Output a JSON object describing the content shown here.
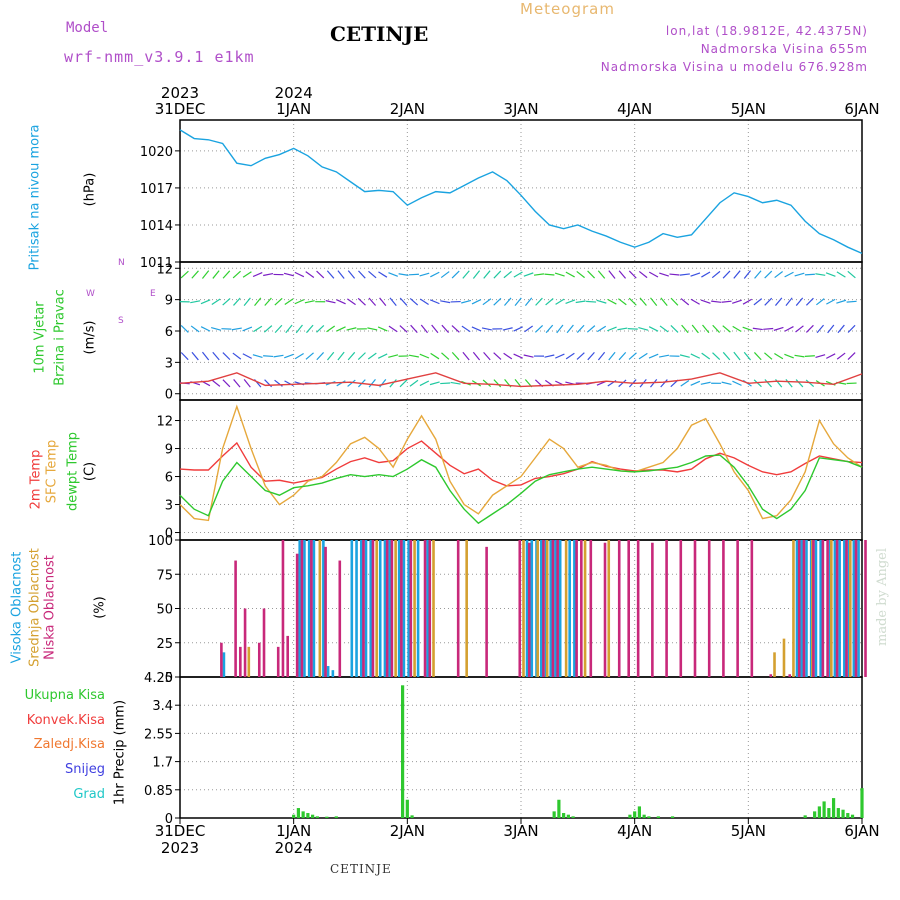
{
  "header": {
    "model_label": "Model",
    "model_name": "wrf-nmm_v3.9.1  e1km",
    "station": "CETINJE",
    "meteogram_label": "Meteogram",
    "lonlat": "lon,lat (18.9812E, 42.4375N)",
    "elevation": "Nadmorska Visina 655m",
    "model_elevation": "Nadmorska Visina u modelu 676.928m"
  },
  "footer_station": "CETINJE",
  "watermark": "made by Angel",
  "time_axis": {
    "top_years": [
      "2023",
      "2024"
    ],
    "bottom_years": [
      "2023",
      "2024"
    ],
    "day_labels": [
      "31DEC",
      "1JAN",
      "2JAN",
      "3JAN",
      "4JAN",
      "5JAN",
      "6JAN"
    ]
  },
  "panel_labels": {
    "pressure": [
      "Pritisak na nivou mora",
      "(hPa)"
    ],
    "wind": [
      "10m Vjetar",
      "Brzina i Pravac",
      "(m/s)"
    ],
    "wind_compass": [
      "N",
      "W",
      "E",
      "S"
    ],
    "temp": [
      "2m Temp",
      "SFC Temp",
      "dewpt Temp",
      "(C)"
    ],
    "cloud": [
      "Visoka Oblacnost",
      "Srednja Oblacnost",
      "Niska Oblacnost",
      "(%)"
    ],
    "precip": [
      "1hr Precip (mm)"
    ],
    "precip_legend": [
      "Ukupna Kisa",
      "Konvek.Kisa",
      "Zaledj.Kisa",
      "Snijeg",
      "Grad"
    ]
  },
  "colors": {
    "pressure": "#1aa3e0",
    "temp2m": "#f03c3c",
    "sfc": "#e6a83c",
    "dewpt": "#2ec82e",
    "high_cloud": "#1aa3e0",
    "mid_cloud": "#d4a030",
    "low_cloud": "#c8287a",
    "rain": "#2ec82e",
    "conv": "#f03c3c",
    "frz": "#f07830",
    "snow": "#4040e0",
    "hail": "#20c8c8",
    "purple_text": "#b04fc9"
  },
  "chart_data": [
    {
      "type": "line",
      "name": "pressure",
      "ylim": [
        1011,
        1022.5
      ],
      "yticks": [
        1011,
        1014,
        1017,
        1020
      ],
      "x_hours": [
        0,
        3,
        6,
        9,
        12,
        15,
        18,
        21,
        24,
        27,
        30,
        33,
        36,
        39,
        42,
        45,
        48,
        51,
        54,
        57,
        60,
        63,
        66,
        69,
        72,
        75,
        78,
        81,
        84,
        87,
        90,
        93,
        96,
        99,
        102,
        105,
        108,
        111,
        114,
        117,
        120,
        123,
        126,
        129,
        132,
        135,
        138,
        141,
        144
      ],
      "values": [
        1021.7,
        1021.0,
        1020.9,
        1020.6,
        1019.0,
        1018.8,
        1019.4,
        1019.7,
        1020.2,
        1019.6,
        1018.7,
        1018.3,
        1017.5,
        1016.7,
        1016.8,
        1016.7,
        1015.6,
        1016.2,
        1016.7,
        1016.6,
        1017.2,
        1017.8,
        1018.3,
        1017.6,
        1016.4,
        1015.1,
        1014.0,
        1013.7,
        1014.0,
        1013.5,
        1013.1,
        1012.6,
        1012.2,
        1012.6,
        1013.3,
        1013.0,
        1013.2,
        1014.5,
        1015.8,
        1016.6,
        1016.3,
        1015.8,
        1016.0,
        1015.6,
        1014.3,
        1013.3,
        1012.8,
        1012.2,
        1011.7
      ]
    },
    {
      "type": "line",
      "name": "wind",
      "ylim": [
        -0.6,
        12.6
      ],
      "yticks": [
        0,
        3,
        6,
        9,
        12
      ],
      "x_hours": [
        0,
        6,
        12,
        18,
        24,
        30,
        36,
        42,
        48,
        54,
        60,
        66,
        72,
        78,
        84,
        90,
        96,
        102,
        108,
        114,
        120,
        126,
        132,
        138,
        144
      ],
      "values": [
        1.0,
        1.2,
        2.0,
        0.8,
        0.9,
        1.0,
        1.1,
        0.8,
        1.4,
        2.0,
        1.0,
        0.9,
        0.7,
        0.8,
        0.9,
        1.2,
        1.0,
        1.1,
        1.4,
        2.0,
        1.0,
        1.2,
        1.1,
        0.9,
        1.9
      ]
    },
    {
      "type": "line",
      "name": "temperature",
      "ylim": [
        -0.8,
        14.2
      ],
      "yticks": [
        0,
        3,
        6,
        9,
        12
      ],
      "x_hours": [
        0,
        3,
        6,
        9,
        12,
        15,
        18,
        21,
        24,
        27,
        30,
        33,
        36,
        39,
        42,
        45,
        48,
        51,
        54,
        57,
        60,
        63,
        66,
        69,
        72,
        75,
        78,
        81,
        84,
        87,
        90,
        93,
        96,
        99,
        102,
        105,
        108,
        111,
        114,
        117,
        120,
        123,
        126,
        129,
        132,
        135,
        138,
        141,
        144
      ],
      "series": [
        {
          "name": "2m Temp",
          "values": [
            6.8,
            6.7,
            6.7,
            8.2,
            9.6,
            7.0,
            5.5,
            5.6,
            5.3,
            5.6,
            5.9,
            6.8,
            7.6,
            8.0,
            7.5,
            7.7,
            9.0,
            9.8,
            8.5,
            7.2,
            6.3,
            6.8,
            5.6,
            5.0,
            5.1,
            5.8,
            6.0,
            6.3,
            6.8,
            7.6,
            7.1,
            6.8,
            6.6,
            6.7,
            6.7,
            6.5,
            6.8,
            7.9,
            8.5,
            8.0,
            7.2,
            6.5,
            6.2,
            6.5,
            7.4,
            8.2,
            7.9,
            7.6,
            7.5
          ]
        },
        {
          "name": "SFC Temp",
          "values": [
            3.0,
            1.5,
            1.3,
            9.0,
            13.5,
            9.0,
            5.0,
            3.0,
            4.0,
            5.5,
            6.0,
            7.5,
            9.5,
            10.2,
            9.0,
            7.0,
            10.0,
            12.5,
            10.0,
            5.5,
            3.0,
            2.0,
            4.0,
            5.0,
            6.0,
            8.0,
            10.0,
            9.0,
            7.0,
            7.5,
            7.2,
            6.6,
            6.5,
            7.0,
            7.5,
            9.0,
            11.5,
            12.2,
            9.5,
            6.5,
            4.5,
            1.5,
            1.8,
            3.5,
            6.5,
            12.0,
            9.5,
            8.0,
            7.0
          ]
        },
        {
          "name": "dewpt Temp",
          "values": [
            4.0,
            2.5,
            1.8,
            5.5,
            7.5,
            6.0,
            4.5,
            4.0,
            4.8,
            5.0,
            5.3,
            5.8,
            6.2,
            6.0,
            6.2,
            6.0,
            6.8,
            7.8,
            7.0,
            4.5,
            2.5,
            1.0,
            2.0,
            3.0,
            4.2,
            5.5,
            6.2,
            6.5,
            6.8,
            7.0,
            6.8,
            6.6,
            6.5,
            6.6,
            6.8,
            7.0,
            7.5,
            8.2,
            8.3,
            7.0,
            5.0,
            2.5,
            1.5,
            2.5,
            4.5,
            8.0,
            7.8,
            7.6,
            7.0
          ]
        }
      ]
    },
    {
      "type": "bar",
      "name": "cloud cover",
      "ylim": [
        0,
        100
      ],
      "yticks": [
        0,
        25,
        50,
        75,
        100
      ],
      "low": [
        [
          8,
          25
        ],
        [
          11,
          85
        ],
        [
          12,
          22
        ],
        [
          13,
          50
        ],
        [
          16,
          25
        ],
        [
          17,
          50
        ],
        [
          20,
          22
        ],
        [
          21,
          100
        ],
        [
          22,
          30
        ],
        [
          24,
          90
        ],
        [
          25,
          100
        ],
        [
          27,
          100
        ],
        [
          30,
          95
        ],
        [
          33,
          85
        ],
        [
          38,
          100
        ],
        [
          40,
          100
        ],
        [
          43,
          100
        ],
        [
          44,
          100
        ],
        [
          46,
          100
        ],
        [
          48,
          100
        ],
        [
          51,
          100
        ],
        [
          52,
          100
        ],
        [
          58,
          100
        ],
        [
          64,
          95
        ],
        [
          71,
          100
        ],
        [
          73,
          98
        ],
        [
          76,
          100
        ],
        [
          78,
          100
        ],
        [
          79,
          100
        ],
        [
          83,
          100
        ],
        [
          84,
          100
        ],
        [
          86,
          100
        ],
        [
          89,
          98
        ],
        [
          92,
          100
        ],
        [
          94,
          100
        ],
        [
          96,
          100
        ],
        [
          99,
          98
        ],
        [
          102,
          100
        ],
        [
          105,
          100
        ],
        [
          108,
          100
        ],
        [
          111,
          100
        ],
        [
          114,
          100
        ],
        [
          117,
          100
        ],
        [
          120,
          100
        ],
        [
          124,
          2
        ],
        [
          128,
          2
        ],
        [
          130,
          100
        ],
        [
          131,
          100
        ],
        [
          133,
          100
        ],
        [
          135,
          100
        ],
        [
          136,
          100
        ],
        [
          138,
          100
        ],
        [
          140,
          100
        ],
        [
          142,
          100
        ],
        [
          144,
          100
        ]
      ],
      "mid": [
        [
          14,
          22
        ],
        [
          29,
          100
        ],
        [
          41,
          100
        ],
        [
          45,
          100
        ],
        [
          49,
          100
        ],
        [
          53,
          100
        ],
        [
          60,
          100
        ],
        [
          72,
          100
        ],
        [
          75,
          100
        ],
        [
          77,
          100
        ],
        [
          81,
          100
        ],
        [
          85,
          100
        ],
        [
          90,
          100
        ],
        [
          125,
          18
        ],
        [
          127,
          28
        ],
        [
          129,
          100
        ],
        [
          133,
          100
        ],
        [
          137,
          100
        ],
        [
          141,
          100
        ]
      ],
      "high": [
        [
          9,
          18
        ],
        [
          25,
          100
        ],
        [
          26,
          100
        ],
        [
          27,
          100
        ],
        [
          28,
          100
        ],
        [
          30,
          100
        ],
        [
          31,
          8
        ],
        [
          32,
          5
        ],
        [
          36,
          100
        ],
        [
          37,
          100
        ],
        [
          38,
          100
        ],
        [
          39,
          100
        ],
        [
          40,
          100
        ],
        [
          42,
          100
        ],
        [
          43,
          100
        ],
        [
          44,
          100
        ],
        [
          46,
          100
        ],
        [
          47,
          100
        ],
        [
          48,
          100
        ],
        [
          50,
          100
        ],
        [
          52,
          100
        ],
        [
          73,
          100
        ],
        [
          74,
          100
        ],
        [
          75,
          100
        ],
        [
          76,
          100
        ],
        [
          77,
          100
        ],
        [
          78,
          100
        ],
        [
          79,
          100
        ],
        [
          80,
          100
        ],
        [
          82,
          100
        ],
        [
          83,
          100
        ],
        [
          130,
          100
        ],
        [
          131,
          100
        ],
        [
          132,
          100
        ],
        [
          133,
          100
        ],
        [
          134,
          100
        ],
        [
          135,
          100
        ],
        [
          137,
          100
        ],
        [
          138,
          100
        ],
        [
          139,
          100
        ],
        [
          140,
          100
        ],
        [
          141,
          100
        ],
        [
          142,
          100
        ],
        [
          143,
          100
        ]
      ]
    },
    {
      "type": "bar",
      "name": "1hr precip",
      "ylim": [
        0,
        4.25
      ],
      "yticks": [
        0,
        0.85,
        1.7,
        2.55,
        3.4,
        4.25
      ],
      "values": [
        [
          24,
          0.1
        ],
        [
          25,
          0.3
        ],
        [
          26,
          0.2
        ],
        [
          27,
          0.15
        ],
        [
          28,
          0.1
        ],
        [
          29,
          0.05
        ],
        [
          31,
          0.04
        ],
        [
          33,
          0.05
        ],
        [
          47,
          4.0
        ],
        [
          48,
          0.55
        ],
        [
          49,
          0.08
        ],
        [
          79,
          0.2
        ],
        [
          80,
          0.55
        ],
        [
          81,
          0.15
        ],
        [
          82,
          0.1
        ],
        [
          83,
          0.05
        ],
        [
          95,
          0.1
        ],
        [
          96,
          0.2
        ],
        [
          97,
          0.35
        ],
        [
          98,
          0.1
        ],
        [
          99,
          0.05
        ],
        [
          101,
          0.05
        ],
        [
          104,
          0.05
        ],
        [
          132,
          0.08
        ],
        [
          134,
          0.2
        ],
        [
          135,
          0.35
        ],
        [
          136,
          0.5
        ],
        [
          137,
          0.3
        ],
        [
          138,
          0.6
        ],
        [
          139,
          0.3
        ],
        [
          140,
          0.25
        ],
        [
          141,
          0.15
        ],
        [
          142,
          0.1
        ],
        [
          144,
          0.9
        ]
      ]
    }
  ]
}
